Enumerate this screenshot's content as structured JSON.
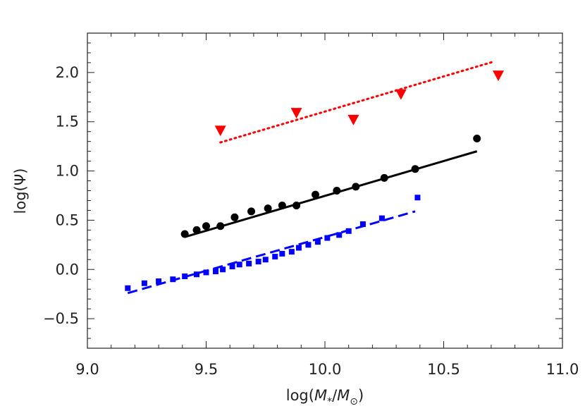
{
  "chart_data": {
    "type": "scatter",
    "title": "",
    "xlabel": "log(M*/M⊙)",
    "ylabel": "log(Ψ)",
    "xlim": [
      9.0,
      11.0
    ],
    "ylim": [
      -0.8,
      2.4
    ],
    "x_ticks": [
      "9.0",
      "9.5",
      "10.0",
      "10.5",
      "11.0"
    ],
    "y_ticks": [
      "−0.5",
      "0.0",
      "0.5",
      "1.0",
      "1.5",
      "2.0"
    ],
    "x_tick_values": [
      9.0,
      9.5,
      10.0,
      10.5,
      11.0
    ],
    "y_tick_values": [
      -0.5,
      0.0,
      0.5,
      1.0,
      1.5,
      2.0
    ],
    "grid": false,
    "series": [
      {
        "marker": "triangle-down",
        "color": "#ff0000",
        "points": [
          [
            9.56,
            1.41
          ],
          [
            9.88,
            1.59
          ],
          [
            10.12,
            1.52
          ],
          [
            10.32,
            1.78
          ],
          [
            10.73,
            1.97
          ]
        ]
      },
      {
        "marker": "circle",
        "color": "#000000",
        "points": [
          [
            9.41,
            0.36
          ],
          [
            9.46,
            0.4
          ],
          [
            9.5,
            0.44
          ],
          [
            9.56,
            0.44
          ],
          [
            9.62,
            0.53
          ],
          [
            9.69,
            0.59
          ],
          [
            9.76,
            0.62
          ],
          [
            9.82,
            0.65
          ],
          [
            9.88,
            0.65
          ],
          [
            9.96,
            0.76
          ],
          [
            10.05,
            0.8
          ],
          [
            10.13,
            0.84
          ],
          [
            10.25,
            0.93
          ],
          [
            10.38,
            1.02
          ],
          [
            10.64,
            1.33
          ]
        ]
      },
      {
        "marker": "square",
        "color": "#0000ff",
        "points": [
          [
            9.17,
            -0.19
          ],
          [
            9.24,
            -0.14
          ],
          [
            9.3,
            -0.12
          ],
          [
            9.36,
            -0.1
          ],
          [
            9.41,
            -0.07
          ],
          [
            9.46,
            -0.05
          ],
          [
            9.5,
            -0.03
          ],
          [
            9.54,
            -0.02
          ],
          [
            9.57,
            0.0
          ],
          [
            9.61,
            0.03
          ],
          [
            9.64,
            0.05
          ],
          [
            9.68,
            0.06
          ],
          [
            9.72,
            0.08
          ],
          [
            9.75,
            0.1
          ],
          [
            9.79,
            0.13
          ],
          [
            9.82,
            0.16
          ],
          [
            9.86,
            0.18
          ],
          [
            9.89,
            0.22
          ],
          [
            9.93,
            0.25
          ],
          [
            9.97,
            0.28
          ],
          [
            10.01,
            0.32
          ],
          [
            10.06,
            0.35
          ],
          [
            10.1,
            0.39
          ],
          [
            10.16,
            0.46
          ],
          [
            10.24,
            0.52
          ],
          [
            10.39,
            0.73
          ]
        ]
      }
    ],
    "fits": [
      {
        "style": "dotted",
        "color": "#ff0000",
        "x": [
          9.56,
          10.71
        ],
        "y": [
          1.29,
          2.11
        ]
      },
      {
        "style": "solid",
        "color": "#000000",
        "x": [
          9.41,
          10.64
        ],
        "y": [
          0.33,
          1.2
        ]
      },
      {
        "style": "dashed",
        "color": "#0000ff",
        "x": [
          9.17,
          10.38
        ],
        "y": [
          -0.24,
          0.59
        ]
      }
    ]
  }
}
